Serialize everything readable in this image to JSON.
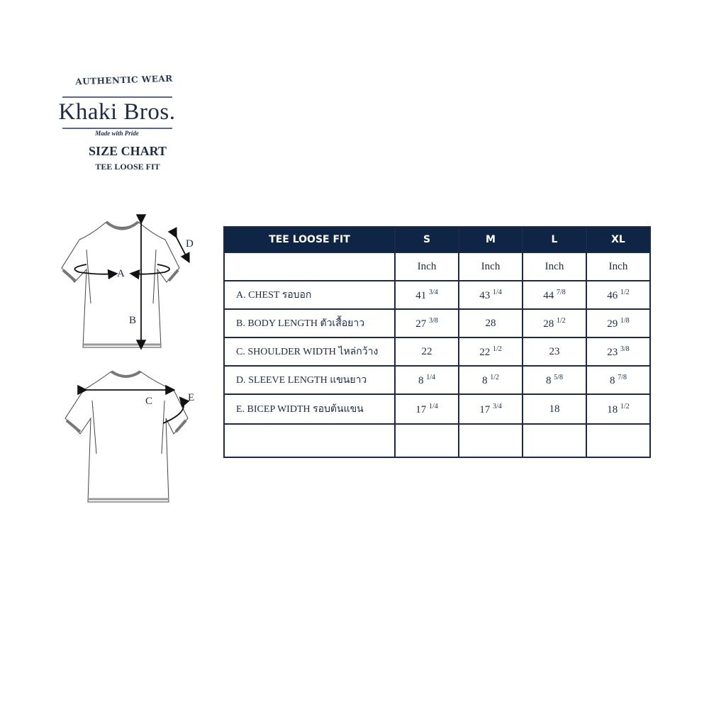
{
  "brand": {
    "tagline_top": "AUTHENTIC WEAR",
    "name": "Khaki Bros.",
    "tagline_bottom": "Made with Pride"
  },
  "title": "SIZE CHART",
  "subtitle": "TEE LOOSE FIT",
  "diagram": {
    "labels": {
      "a": "A",
      "b": "B",
      "c": "C",
      "d": "D",
      "e": "E"
    }
  },
  "table": {
    "header": [
      "TEE LOOSE FIT",
      "S",
      "M",
      "L",
      "XL"
    ],
    "unit_row": [
      "",
      "Inch",
      "Inch",
      "Inch",
      "Inch"
    ],
    "rows": [
      {
        "label": "A. CHEST รอบอก",
        "values": [
          [
            "41",
            "3/4"
          ],
          [
            "43",
            "1/4"
          ],
          [
            "44",
            "7/8"
          ],
          [
            "46",
            "1/2"
          ]
        ]
      },
      {
        "label": "B. BODY LENGTH ตัวเสื้อยาว",
        "values": [
          [
            "27",
            "3/8"
          ],
          [
            "28",
            ""
          ],
          [
            "28",
            "1/2"
          ],
          [
            "29",
            "1/8"
          ]
        ]
      },
      {
        "label": "C. SHOULDER WIDTH ไหล่กว้าง",
        "values": [
          [
            "22",
            ""
          ],
          [
            "22",
            "1/2"
          ],
          [
            "23",
            ""
          ],
          [
            "23",
            "3/8"
          ]
        ]
      },
      {
        "label": "D. SLEEVE LENGTH แขนยาว",
        "values": [
          [
            "8",
            "1/4"
          ],
          [
            "8",
            "1/2"
          ],
          [
            "8",
            "5/8"
          ],
          [
            "8",
            "7/8"
          ]
        ]
      },
      {
        "label": "E. BICEP WIDTH  รอบต้นแขน",
        "values": [
          [
            "17",
            "1/4"
          ],
          [
            "17",
            "3/4"
          ],
          [
            "18",
            ""
          ],
          [
            "18",
            "1/2"
          ]
        ]
      }
    ],
    "colors": {
      "header_bg": "#0f2545",
      "header_text": "#ffffff",
      "border": "#1a2a48"
    }
  }
}
